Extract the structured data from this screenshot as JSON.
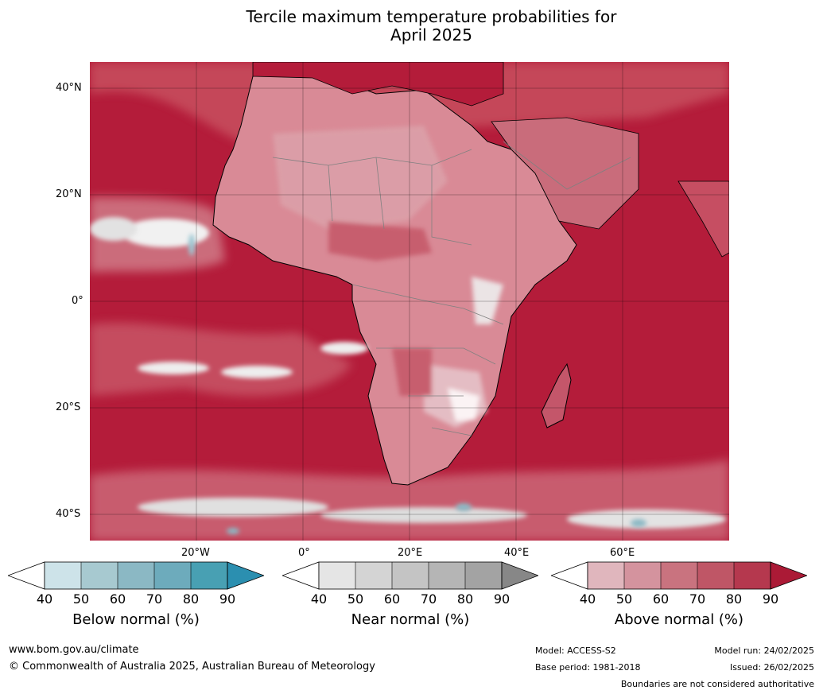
{
  "title": [
    "Tercile maximum temperature probabilities for",
    "April 2025"
  ],
  "lat_labels": [
    "40°N",
    "20°N",
    "0°",
    "20°S",
    "40°S"
  ],
  "lon_labels": [
    "20°W",
    "0°",
    "20°E",
    "40°E",
    "60°E"
  ],
  "colors": {
    "ocean_dominant": "#b41c3a",
    "land_dominant": "#d98a96",
    "below": [
      "#cde3e9",
      "#a7c9d0",
      "#8bb8c4",
      "#6dabbc",
      "#48a0b3",
      "#2b8fb0"
    ],
    "near": [
      "#e5e5e5",
      "#d4d4d4",
      "#c4c4c4",
      "#b5b5b5",
      "#a3a3a3",
      "#878787"
    ],
    "above": [
      "#e0b6bd",
      "#d4939e",
      "#c9737f",
      "#bf5666",
      "#b5384e",
      "#ab1a36"
    ]
  },
  "colorbars": [
    {
      "name": "below",
      "label": "Below normal (%)",
      "ticks": [
        "40",
        "50",
        "60",
        "70",
        "80",
        "90"
      ]
    },
    {
      "name": "near",
      "label": "Near normal (%)",
      "ticks": [
        "40",
        "50",
        "60",
        "70",
        "80",
        "90"
      ]
    },
    {
      "name": "above",
      "label": "Above normal (%)",
      "ticks": [
        "40",
        "50",
        "60",
        "70",
        "80",
        "90"
      ]
    }
  ],
  "footer": {
    "website": "www.bom.gov.au/climate",
    "copyright": "© Commonwealth of Australia 2025, Australian Bureau of Meteorology",
    "model": "Model: ACCESS-S2",
    "base_period": "Base period: 1981-2018",
    "model_run": "Model run: 24/02/2025",
    "issued": "Issued: 26/02/2025",
    "disclaimer": "Boundaries are not considered authoritative"
  }
}
